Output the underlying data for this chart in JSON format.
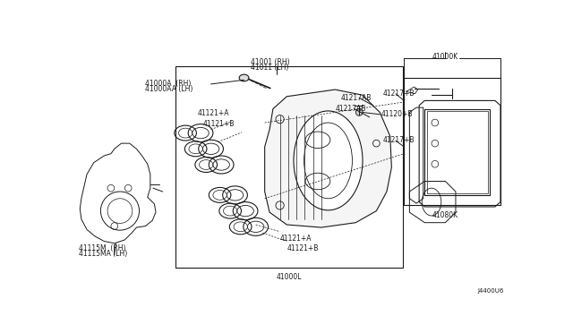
{
  "bg_color": "#ffffff",
  "line_color": "#1a1a1a",
  "fig_width": 6.4,
  "fig_height": 3.72,
  "part_labels": {
    "41000A_RH": "41000A  (RH)",
    "41000AA_LH": "41000AA (LH)",
    "41001_RH": "41001 (RH)",
    "41011_LH": "41011 (LH)",
    "41121A_top": "41121+A",
    "41121B_top": "41121+B",
    "41121A_bot": "41121+A",
    "41121B_bot": "41121+B",
    "41120B": "41120+B",
    "41000L": "41000L",
    "41000K": "41000K",
    "41080K": "41080K",
    "41217AB": "41217AB",
    "41217AB2": "41217AB",
    "41217B_top": "41217+B",
    "41217B_bot": "41217+B",
    "41115M_RH": "41115M  (RH)",
    "41115MA_LH": "41115MA (LH)",
    "J4400U6": "J4400U6"
  }
}
